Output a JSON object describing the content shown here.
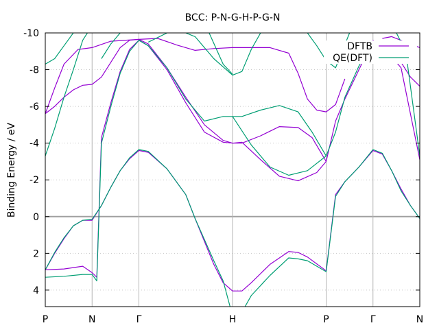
{
  "chart_data": {
    "type": "line",
    "title": "BCC: P-N-G-H-P-G-N",
    "ylabel": "Binding Energy / eV",
    "xlabel": "",
    "ylim": [
      4.9,
      -10
    ],
    "y_ticks": [
      -10,
      -8,
      -6,
      -4,
      -2,
      0,
      2,
      4
    ],
    "x_ticks": [
      {
        "label": "P",
        "x": 0.0
      },
      {
        "label": "N",
        "x": 0.5
      },
      {
        "label": "Γ",
        "x": 1.0
      },
      {
        "label": "H",
        "x": 2.0
      },
      {
        "label": "P",
        "x": 3.0
      },
      {
        "label": "Γ",
        "x": 3.5
      },
      {
        "label": "N",
        "x": 4.0
      }
    ],
    "xlim": [
      0,
      4
    ],
    "grid": "dotted on both axes",
    "legend_position": "top-right",
    "colors": {
      "DFTB": "#9400d3",
      "QE(DFT)": "#009e73",
      "zero_line": "#a0a0a0",
      "gridline": "#c8c8c8"
    },
    "series": [
      {
        "name": "DFTB",
        "bands": [
          [
            [
              0,
              2.9
            ],
            [
              0.1,
              2.0
            ],
            [
              0.2,
              1.2
            ],
            [
              0.3,
              0.5
            ],
            [
              0.4,
              0.2
            ],
            [
              0.5,
              0.2
            ],
            [
              0.6,
              -0.6
            ],
            [
              0.7,
              -1.6
            ],
            [
              0.8,
              -2.5
            ],
            [
              0.9,
              -3.15
            ],
            [
              1.0,
              -3.6
            ],
            [
              1.1,
              -3.5
            ],
            [
              1.3,
              -2.6
            ],
            [
              1.5,
              -1.2
            ],
            [
              1.6,
              0.1
            ],
            [
              1.8,
              2.6
            ],
            [
              1.9,
              3.6
            ],
            [
              2.0,
              4.05
            ],
            [
              2.1,
              4.05
            ],
            [
              2.2,
              3.6
            ],
            [
              2.4,
              2.6
            ],
            [
              2.6,
              1.9
            ],
            [
              2.7,
              1.95
            ],
            [
              2.8,
              2.2
            ],
            [
              3.0,
              2.95
            ],
            [
              3.1,
              -1.2
            ],
            [
              3.2,
              -1.9
            ],
            [
              3.35,
              -2.7
            ],
            [
              3.5,
              -3.6
            ],
            [
              3.6,
              -3.4
            ],
            [
              3.7,
              -2.5
            ],
            [
              3.8,
              -1.5
            ],
            [
              3.9,
              -0.6
            ],
            [
              4.0,
              0.1
            ]
          ],
          [
            [
              0,
              2.9
            ],
            [
              0.2,
              2.85
            ],
            [
              0.4,
              2.7
            ],
            [
              0.5,
              3.05
            ],
            [
              0.55,
              3.3
            ],
            [
              0.6,
              -4.3
            ],
            [
              0.7,
              -6.2
            ],
            [
              0.8,
              -7.9
            ],
            [
              0.9,
              -9.1
            ],
            [
              1.0,
              -9.6
            ],
            [
              1.1,
              -9.3
            ],
            [
              1.3,
              -8.0
            ],
            [
              1.5,
              -6.2
            ],
            [
              1.7,
              -4.6
            ],
            [
              1.9,
              -4.05
            ],
            [
              2.0,
              -4.0
            ],
            [
              2.1,
              -4.0
            ],
            [
              2.3,
              -4.4
            ],
            [
              2.5,
              -4.9
            ],
            [
              2.7,
              -4.85
            ],
            [
              2.85,
              -4.3
            ],
            [
              3.0,
              -3.0
            ],
            [
              3.1,
              -5.2
            ],
            [
              3.2,
              -6.4
            ],
            [
              3.35,
              -8.0
            ],
            [
              3.5,
              -9.6
            ],
            [
              3.6,
              -9.3
            ],
            [
              3.8,
              -8.1
            ],
            [
              4.0,
              -3.1
            ]
          ],
          [
            [
              0,
              -5.6
            ],
            [
              0.1,
              -6.0
            ],
            [
              0.2,
              -6.5
            ],
            [
              0.3,
              -6.9
            ],
            [
              0.4,
              -7.15
            ],
            [
              0.5,
              -7.2
            ],
            [
              0.6,
              -7.6
            ],
            [
              0.7,
              -8.4
            ],
            [
              0.8,
              -9.2
            ],
            [
              0.9,
              -9.6
            ],
            [
              1.0,
              -9.65
            ],
            [
              1.1,
              -9.4
            ],
            [
              1.3,
              -8.1
            ],
            [
              1.5,
              -6.5
            ],
            [
              1.7,
              -5.0
            ],
            [
              1.9,
              -4.15
            ],
            [
              2.0,
              -4.0
            ],
            [
              2.1,
              -4.05
            ],
            [
              2.3,
              -3.1
            ],
            [
              2.5,
              -2.2
            ],
            [
              2.7,
              -1.95
            ],
            [
              2.9,
              -2.4
            ],
            [
              3.0,
              -3.0
            ]
          ],
          [
            [
              0,
              -5.6
            ],
            [
              0.1,
              -7.0
            ],
            [
              0.2,
              -8.3
            ],
            [
              0.35,
              -9.1
            ],
            [
              0.5,
              -9.2
            ],
            [
              0.7,
              -9.55
            ],
            [
              1.0,
              -9.65
            ],
            [
              1.2,
              -9.7
            ],
            [
              1.4,
              -9.35
            ],
            [
              1.6,
              -9.05
            ],
            [
              1.8,
              -9.15
            ],
            [
              2.0,
              -9.2
            ],
            [
              2.2,
              -9.2
            ],
            [
              2.4,
              -9.2
            ],
            [
              2.6,
              -8.9
            ],
            [
              2.7,
              -7.8
            ],
            [
              2.8,
              -6.4
            ],
            [
              2.9,
              -5.8
            ],
            [
              3.0,
              -5.7
            ],
            [
              3.1,
              -6.1
            ],
            [
              3.2,
              -7.5
            ]
          ],
          [
            [
              3.75,
              -8.8
            ],
            [
              3.85,
              -8.0
            ],
            [
              3.9,
              -7.6
            ],
            [
              4.0,
              -7.1
            ]
          ],
          [
            [
              3.6,
              -9.7
            ],
            [
              3.7,
              -9.8
            ],
            [
              4.0,
              -9.2
            ]
          ]
        ]
      },
      {
        "name": "QE(DFT)",
        "bands": [
          [
            [
              0,
              2.9
            ],
            [
              0.1,
              1.95
            ],
            [
              0.2,
              1.15
            ],
            [
              0.3,
              0.5
            ],
            [
              0.4,
              0.2
            ],
            [
              0.5,
              0.15
            ],
            [
              0.6,
              -0.6
            ],
            [
              0.7,
              -1.6
            ],
            [
              0.8,
              -2.5
            ],
            [
              0.9,
              -3.2
            ],
            [
              1.0,
              -3.65
            ],
            [
              1.1,
              -3.55
            ],
            [
              1.3,
              -2.6
            ],
            [
              1.5,
              -1.2
            ],
            [
              1.6,
              0.1
            ],
            [
              1.8,
              2.4
            ],
            [
              1.9,
              3.5
            ],
            [
              2.0,
              5.4
            ],
            [
              2.1,
              5.2
            ],
            [
              2.2,
              4.3
            ],
            [
              2.4,
              3.2
            ],
            [
              2.6,
              2.25
            ],
            [
              2.7,
              2.3
            ],
            [
              2.8,
              2.4
            ],
            [
              3.0,
              3.0
            ],
            [
              3.1,
              -1.1
            ],
            [
              3.2,
              -1.9
            ],
            [
              3.35,
              -2.7
            ],
            [
              3.5,
              -3.65
            ],
            [
              3.6,
              -3.45
            ],
            [
              3.7,
              -2.5
            ],
            [
              3.8,
              -1.4
            ],
            [
              3.9,
              -0.6
            ],
            [
              4.0,
              0.1
            ]
          ],
          [
            [
              0,
              3.3
            ],
            [
              0.2,
              3.25
            ],
            [
              0.4,
              3.15
            ],
            [
              0.5,
              3.15
            ],
            [
              0.55,
              3.5
            ],
            [
              0.6,
              -4.0
            ],
            [
              0.7,
              -6.0
            ],
            [
              0.8,
              -7.8
            ],
            [
              0.9,
              -9.0
            ],
            [
              1.0,
              -9.6
            ],
            [
              1.1,
              -9.3
            ],
            [
              1.3,
              -8.1
            ],
            [
              1.5,
              -6.4
            ],
            [
              1.7,
              -5.2
            ],
            [
              1.9,
              -5.45
            ],
            [
              2.0,
              -5.45
            ],
            [
              2.1,
              -5.45
            ],
            [
              2.3,
              -5.8
            ],
            [
              2.5,
              -6.05
            ],
            [
              2.7,
              -5.7
            ],
            [
              2.85,
              -4.6
            ],
            [
              3.0,
              -3.3
            ]
          ],
          [
            [
              0,
              -8.3
            ],
            [
              0.1,
              -8.6
            ],
            [
              0.2,
              -9.3
            ],
            [
              0.3,
              -10
            ]
          ],
          [
            [
              0,
              -3.3
            ],
            [
              0.1,
              -4.8
            ],
            [
              0.2,
              -6.5
            ],
            [
              0.3,
              -8.0
            ],
            [
              0.4,
              -9.6
            ],
            [
              0.45,
              -10
            ]
          ],
          [
            [
              1.5,
              -10
            ],
            [
              1.6,
              -9.8
            ],
            [
              1.8,
              -8.6
            ],
            [
              2.0,
              -7.7
            ],
            [
              2.1,
              -7.9
            ],
            [
              2.2,
              -9.1
            ],
            [
              2.3,
              -10
            ]
          ],
          [
            [
              1.75,
              -10
            ],
            [
              1.9,
              -8.3
            ],
            [
              2.0,
              -7.75
            ]
          ],
          [
            [
              0.6,
              -8.6
            ],
            [
              0.7,
              -9.4
            ],
            [
              0.8,
              -10
            ]
          ],
          [
            [
              1.1,
              -9.5
            ],
            [
              1.3,
              -10
            ]
          ],
          [
            [
              2.8,
              -10
            ],
            [
              2.9,
              -9.3
            ],
            [
              3.0,
              -8.5
            ],
            [
              3.1,
              -8.1
            ],
            [
              3.25,
              -10
            ]
          ],
          [
            [
              3.75,
              -10
            ],
            [
              3.85,
              -9.0
            ],
            [
              4.0,
              -3.3
            ]
          ],
          [
            [
              2.0,
              -5.45
            ],
            [
              2.2,
              -3.9
            ],
            [
              2.4,
              -2.7
            ],
            [
              2.6,
              -2.25
            ],
            [
              2.8,
              -2.5
            ],
            [
              3.0,
              -3.3
            ],
            [
              3.1,
              -4.6
            ],
            [
              3.2,
              -6.5
            ],
            [
              3.35,
              -8.2
            ],
            [
              3.5,
              -9.5
            ]
          ]
        ]
      }
    ]
  }
}
